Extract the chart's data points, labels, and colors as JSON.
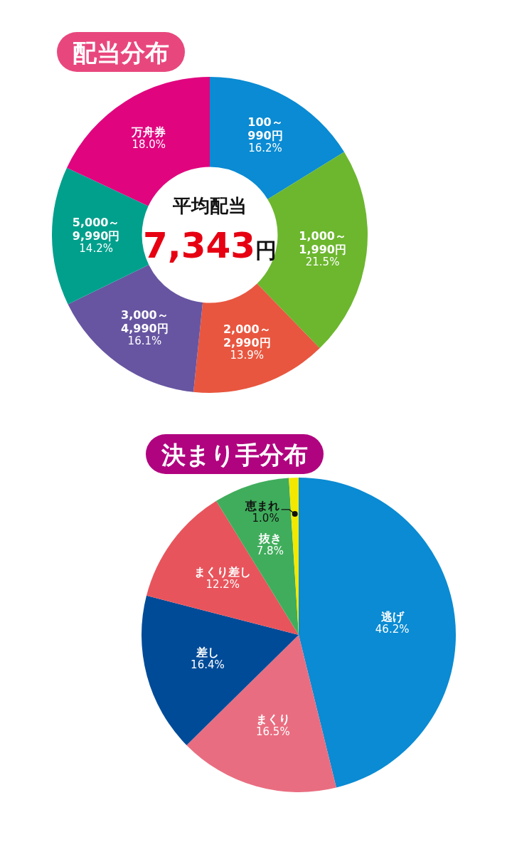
{
  "chart_data": [
    {
      "type": "donut",
      "title": "配当分布",
      "categories": [
        "100～\n990円",
        "1,000～\n1,990円",
        "2,000～\n2,990円",
        "3,000～\n4,990円",
        "5,000～\n9,990円",
        "万舟券"
      ],
      "values": [
        16.2,
        21.5,
        13.9,
        16.1,
        14.2,
        18.0
      ],
      "colors": [
        "#0a8bd3",
        "#6cb72e",
        "#e8563f",
        "#6755a1",
        "#00a08c",
        "#e0047f"
      ],
      "value_labels": [
        "16.2%",
        "21.5%",
        "13.9%",
        "16.1%",
        "14.2%",
        "18.0%"
      ],
      "annotations": [
        "平均配当",
        "7,343円"
      ]
    },
    {
      "type": "pie",
      "title": "決まり手分布",
      "categories": [
        "逃げ",
        "まくり",
        "差し",
        "まくり差し",
        "抜き",
        "恵まれ"
      ],
      "values": [
        46.2,
        16.5,
        16.4,
        12.2,
        7.8,
        1.0
      ],
      "colors": [
        "#0a8bd3",
        "#e96d80",
        "#004b98",
        "#e8545c",
        "#40ad5c",
        "#f2e800"
      ],
      "value_labels": [
        "46.2%",
        "16.5%",
        "16.4%",
        "12.2%",
        "7.8%",
        "1.0%"
      ]
    }
  ]
}
